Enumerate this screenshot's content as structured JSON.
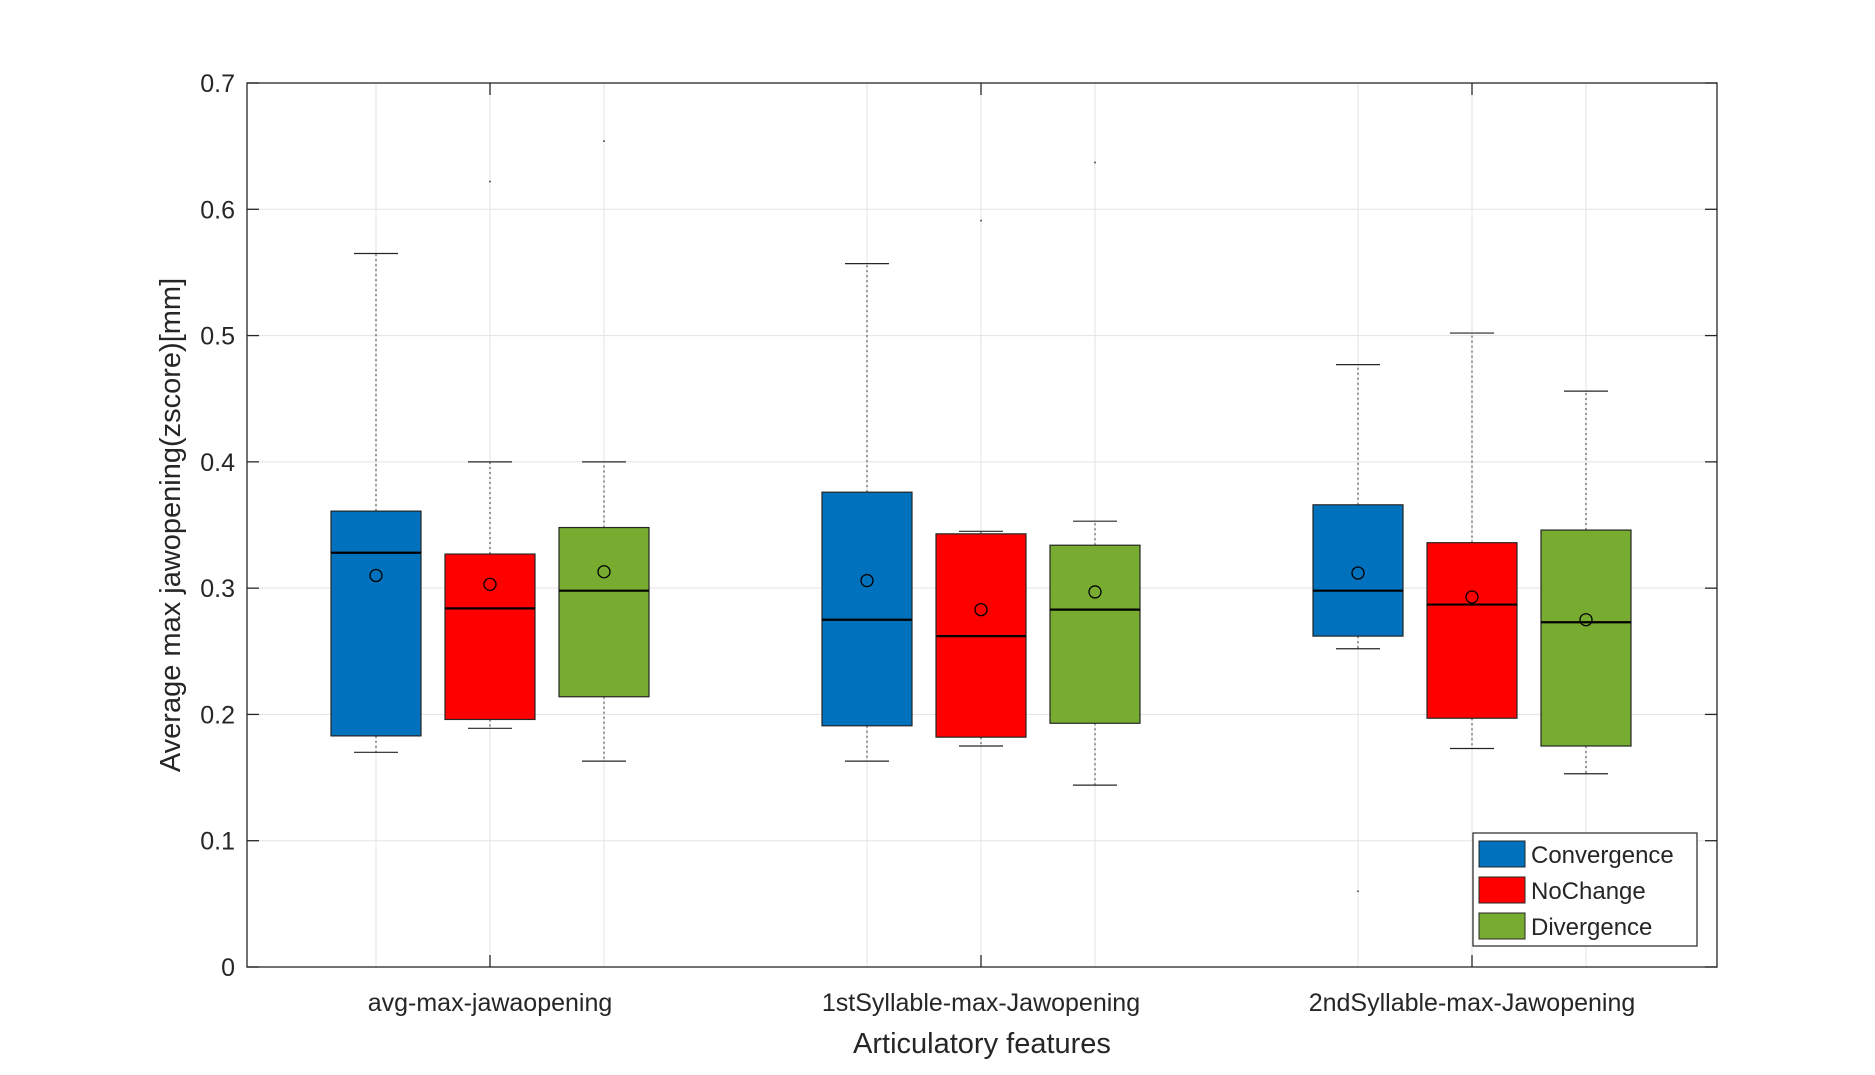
{
  "chart_data": {
    "type": "box",
    "xlabel": "Articulatory features",
    "ylabel": "Average max jawopening(zscore)[mm]",
    "ylim": [
      0,
      0.7
    ],
    "yticks": [
      "0",
      "0.1",
      "0.2",
      "0.3",
      "0.4",
      "0.5",
      "0.6",
      "0.7"
    ],
    "grid": true,
    "legend_position": "bottom-right",
    "categories": [
      "avg-max-jawaopening",
      "1stSyllable-max-Jawopening",
      "2ndSyllable-max-Jawopening"
    ],
    "series": [
      {
        "name": "Convergence",
        "color": "#0072bd",
        "boxes": [
          {
            "whisker_low": 0.17,
            "q1": 0.183,
            "median": 0.328,
            "q3": 0.361,
            "whisker_high": 0.565,
            "mean": 0.31,
            "outliers": []
          },
          {
            "whisker_low": 0.163,
            "q1": 0.191,
            "median": 0.275,
            "q3": 0.376,
            "whisker_high": 0.557,
            "mean": 0.306,
            "outliers": []
          },
          {
            "whisker_low": 0.252,
            "q1": 0.262,
            "median": 0.298,
            "q3": 0.366,
            "whisker_high": 0.477,
            "mean": 0.312,
            "outliers": [
              0.06
            ]
          }
        ]
      },
      {
        "name": "NoChange",
        "color": "#ff0000",
        "boxes": [
          {
            "whisker_low": 0.189,
            "q1": 0.196,
            "median": 0.284,
            "q3": 0.327,
            "whisker_high": 0.4,
            "mean": 0.303,
            "outliers": [
              0.622
            ]
          },
          {
            "whisker_low": 0.175,
            "q1": 0.182,
            "median": 0.262,
            "q3": 0.343,
            "whisker_high": 0.345,
            "mean": 0.283,
            "outliers": [
              0.591
            ]
          },
          {
            "whisker_low": 0.173,
            "q1": 0.197,
            "median": 0.287,
            "q3": 0.336,
            "whisker_high": 0.502,
            "mean": 0.293,
            "outliers": []
          }
        ]
      },
      {
        "name": "Divergence",
        "color": "#77ac30",
        "boxes": [
          {
            "whisker_low": 0.163,
            "q1": 0.214,
            "median": 0.298,
            "q3": 0.348,
            "whisker_high": 0.4,
            "mean": 0.313,
            "outliers": [
              0.654
            ]
          },
          {
            "whisker_low": 0.144,
            "q1": 0.193,
            "median": 0.283,
            "q3": 0.334,
            "whisker_high": 0.353,
            "mean": 0.297,
            "outliers": [
              0.637
            ]
          },
          {
            "whisker_low": 0.153,
            "q1": 0.175,
            "median": 0.273,
            "q3": 0.346,
            "whisker_high": 0.456,
            "mean": 0.275,
            "outliers": []
          }
        ]
      }
    ]
  }
}
